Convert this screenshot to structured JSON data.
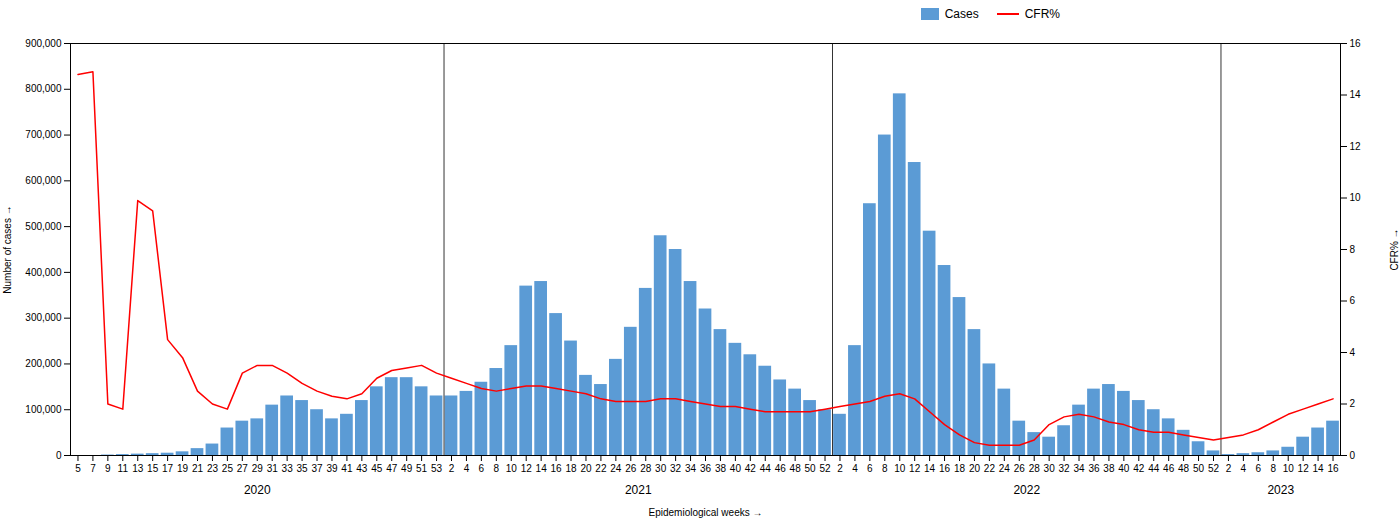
{
  "chart_data": {
    "type": "bar",
    "xlabel": "Epidemiological weeks",
    "ylabel": "Number of cases",
    "y2label": "CFR%",
    "categories": [
      "5",
      "7",
      "9",
      "11",
      "13",
      "15",
      "17",
      "19",
      "21",
      "23",
      "25",
      "27",
      "29",
      "31",
      "33",
      "35",
      "37",
      "39",
      "41",
      "43",
      "45",
      "47",
      "49",
      "51",
      "53",
      "2",
      "4",
      "6",
      "8",
      "10",
      "12",
      "14",
      "16",
      "18",
      "20",
      "22",
      "24",
      "26",
      "28",
      "30",
      "32",
      "34",
      "36",
      "38",
      "40",
      "42",
      "44",
      "46",
      "48",
      "50",
      "52",
      "2",
      "4",
      "6",
      "8",
      "10",
      "12",
      "14",
      "16",
      "18",
      "20",
      "22",
      "24",
      "26",
      "28",
      "30",
      "32",
      "34",
      "36",
      "38",
      "40",
      "42",
      "44",
      "46",
      "48",
      "50",
      "52",
      "2",
      "4",
      "6",
      "8",
      "10",
      "12",
      "14",
      "16"
    ],
    "groups": [
      {
        "label": "2020",
        "count": 25
      },
      {
        "label": "2021",
        "count": 26
      },
      {
        "label": "2022",
        "count": 26
      },
      {
        "label": "2023",
        "count": 8
      }
    ],
    "series": [
      {
        "name": "Cases",
        "type": "bar",
        "color": "#5b9bd5",
        "values": [
          0,
          0,
          1000,
          2000,
          3000,
          4000,
          5000,
          8000,
          15000,
          25000,
          60000,
          75000,
          80000,
          110000,
          130000,
          120000,
          100000,
          80000,
          90000,
          120000,
          150000,
          170000,
          170000,
          150000,
          130000,
          130000,
          140000,
          160000,
          190000,
          240000,
          370000,
          380000,
          310000,
          250000,
          175000,
          155000,
          210000,
          280000,
          365000,
          480000,
          450000,
          380000,
          320000,
          275000,
          245000,
          220000,
          195000,
          165000,
          145000,
          120000,
          100000,
          90000,
          240000,
          550000,
          700000,
          790000,
          640000,
          490000,
          415000,
          345000,
          275000,
          200000,
          145000,
          75000,
          50000,
          40000,
          65000,
          110000,
          145000,
          155000,
          140000,
          120000,
          100000,
          80000,
          55000,
          30000,
          10000,
          2000,
          4000,
          6000,
          10000,
          18000,
          40000,
          60000,
          75000
        ]
      },
      {
        "name": "CFR%",
        "type": "line",
        "axis": "y2",
        "color": "#ff0000",
        "values": [
          14.8,
          14.9,
          2.0,
          1.8,
          9.9,
          9.5,
          4.5,
          3.8,
          2.5,
          2.0,
          1.8,
          3.2,
          3.5,
          3.5,
          3.2,
          2.8,
          2.5,
          2.3,
          2.2,
          2.4,
          3.0,
          3.3,
          3.4,
          3.5,
          3.2,
          3.0,
          2.8,
          2.6,
          2.5,
          2.6,
          2.7,
          2.7,
          2.6,
          2.5,
          2.4,
          2.2,
          2.1,
          2.1,
          2.1,
          2.2,
          2.2,
          2.1,
          2.0,
          1.9,
          1.9,
          1.8,
          1.7,
          1.7,
          1.7,
          1.7,
          1.8,
          1.9,
          2.0,
          2.1,
          2.3,
          2.4,
          2.2,
          1.7,
          1.2,
          0.8,
          0.5,
          0.4,
          0.4,
          0.4,
          0.6,
          1.2,
          1.5,
          1.6,
          1.5,
          1.3,
          1.2,
          1.0,
          0.9,
          0.9,
          0.8,
          0.7,
          0.6,
          0.7,
          0.8,
          1.0,
          1.3,
          1.6,
          1.8,
          2.0,
          2.2
        ]
      }
    ],
    "ylim": [
      0,
      900000
    ],
    "yticks": [
      0,
      {
        "value": 100000,
        "label": "100,000"
      },
      {
        "value": 200000,
        "label": "200,000"
      },
      {
        "value": 300000,
        "label": "300,000"
      },
      {
        "value": 400000,
        "label": "400,000"
      },
      {
        "value": 500000,
        "label": "500,000"
      },
      {
        "value": 600000,
        "label": "600,000"
      },
      {
        "value": 700000,
        "label": "700,000"
      },
      {
        "value": 800000,
        "label": "800,000"
      },
      {
        "value": 900000,
        "label": "900,000"
      }
    ],
    "y2lim": [
      0,
      16
    ],
    "y2ticks": [
      0,
      2,
      4,
      6,
      8,
      10,
      12,
      14,
      16
    ],
    "grid": false,
    "legend": "upper right"
  }
}
